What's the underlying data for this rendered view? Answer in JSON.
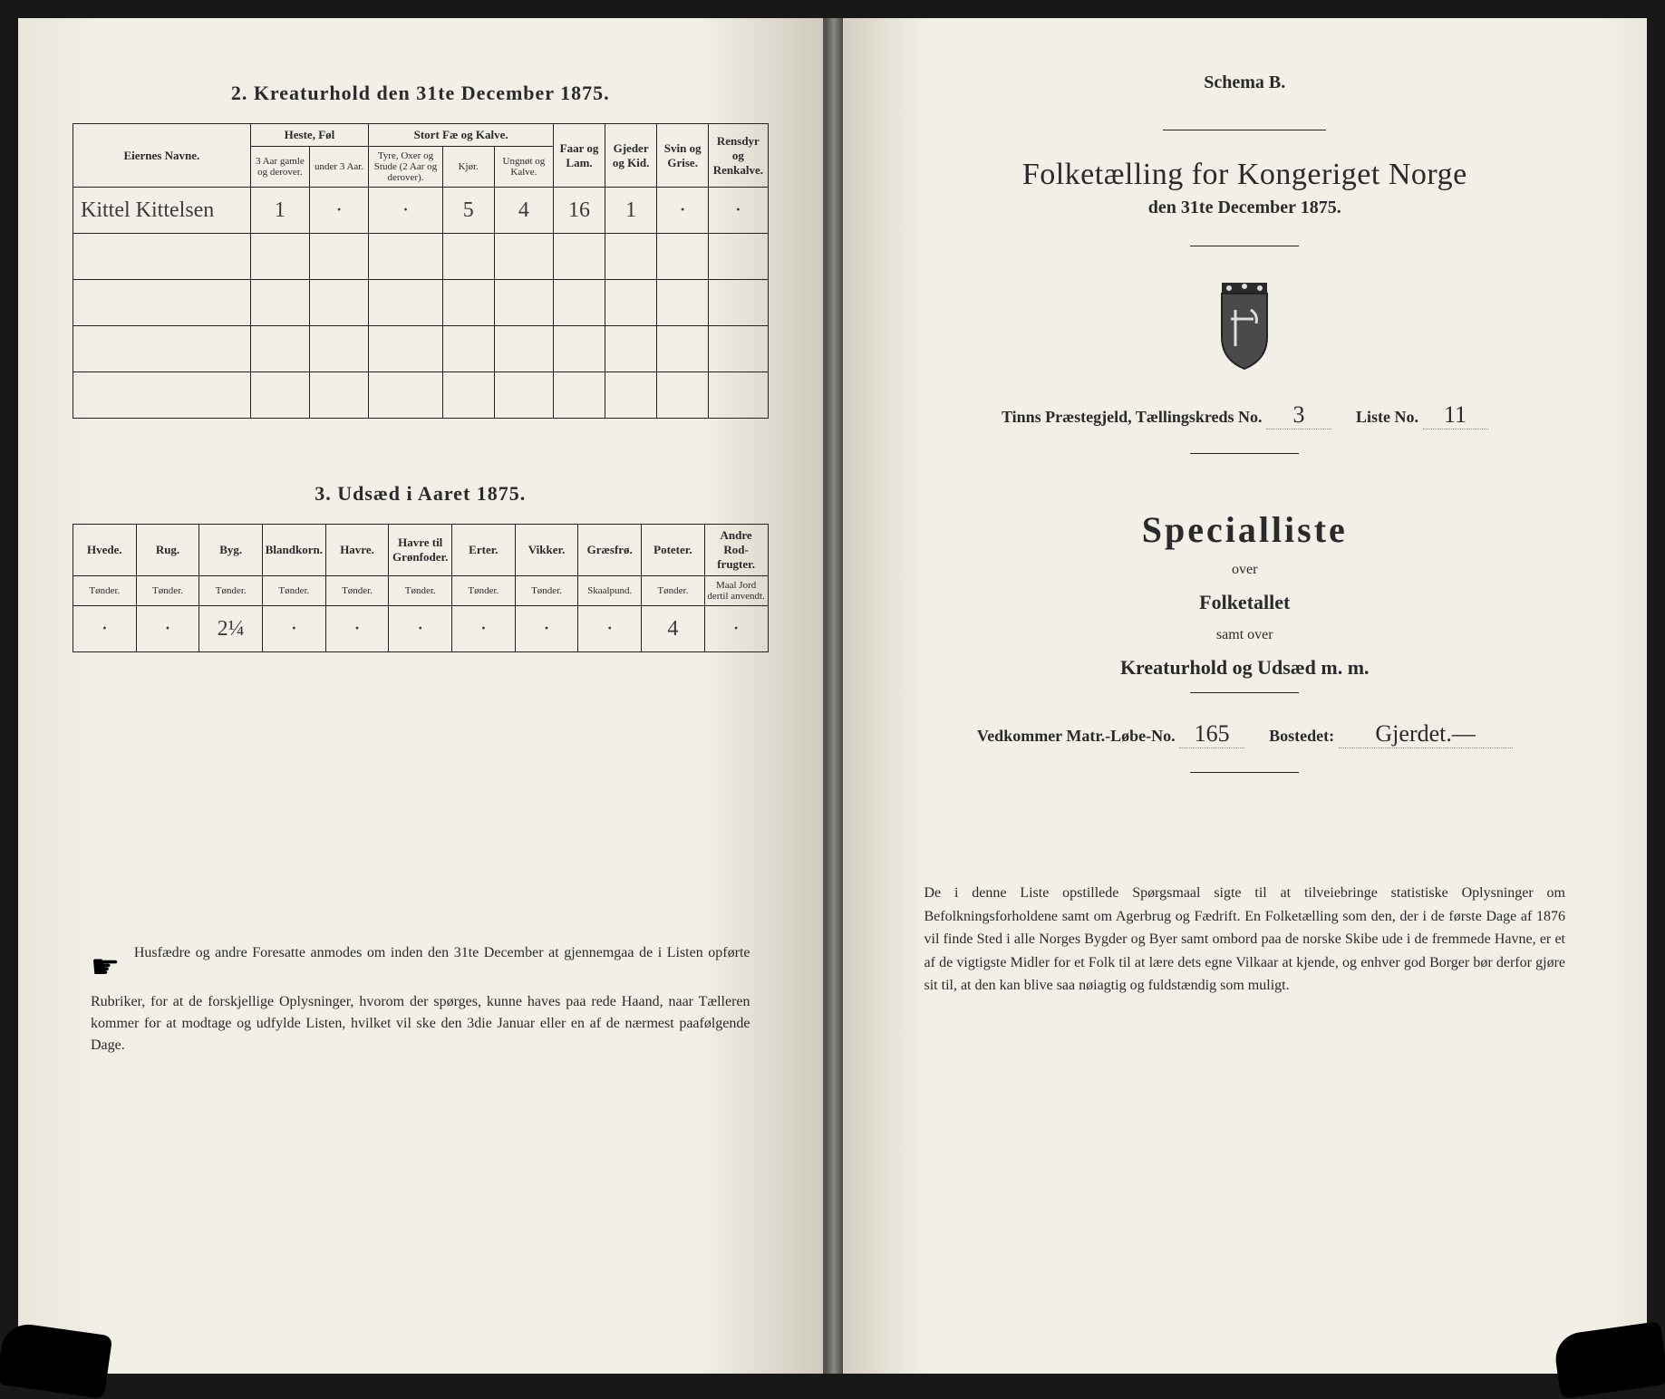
{
  "left": {
    "section2_title": "2.  Kreaturhold den 31te December 1875.",
    "t2": {
      "col_owner": "Eiernes Navne.",
      "grp_horses": "Heste, Føl",
      "grp_cattle": "Stort Fæ og Kalve.",
      "col_sheep": "Faar og Lam.",
      "col_goats": "Gjeder og Kid.",
      "col_pigs": "Svin og Grise.",
      "col_reindeer": "Rensdyr og Renkalve.",
      "sub_h1": "3 Aar gamle og derover.",
      "sub_h2": "under 3 Aar.",
      "sub_c1": "Tyre, Oxer og Stude (2 Aar og derover).",
      "sub_c2": "Kjør.",
      "sub_c3": "Ungnøt og Kalve.",
      "row1": {
        "owner": "Kittel Kittelsen",
        "h1": "1",
        "h2": "·",
        "c1": "·",
        "c2": "5",
        "c3": "4",
        "sheep": "16",
        "goats": "1",
        "pigs": "·",
        "reindeer": "·"
      }
    },
    "section3_title": "3.  Udsæd i Aaret 1875.",
    "t3": {
      "cols": [
        "Hvede.",
        "Rug.",
        "Byg.",
        "Blandkorn.",
        "Havre.",
        "Havre til Grønfoder.",
        "Erter.",
        "Vikker.",
        "Græsfrø.",
        "Poteter.",
        "Andre Rod-frugter."
      ],
      "units": [
        "Tønder.",
        "Tønder.",
        "Tønder.",
        "Tønder.",
        "Tønder.",
        "Tønder.",
        "Tønder.",
        "Tønder.",
        "Skaalpund.",
        "Tønder.",
        "Maal Jord dertil anvendt."
      ],
      "row": [
        "·",
        "·",
        "2¼",
        "·",
        "·",
        "·",
        "·",
        "·",
        "·",
        "4",
        "·"
      ]
    },
    "footnote": "Husfædre og andre Foresatte anmodes om inden den 31te December at gjennemgaa de i Listen opførte Rubriker, for at de forskjellige Oplysninger, hvorom der spørges, kunne haves paa rede Haand, naar Tælleren kommer for at modtage og udfylde Listen, hvilket vil ske den 3die Januar eller en af de nærmest paafølgende Dage."
  },
  "right": {
    "schema": "Schema B.",
    "main_title": "Folketælling for Kongeriget Norge",
    "sub_date": "den 31te December 1875.",
    "line1_a": "Tinns Præstegjeld, Tællingskreds No.",
    "line1_v1": "3",
    "line1_b": "Liste No.",
    "line1_v2": "11",
    "spec": "Specialliste",
    "over": "over",
    "folke": "Folketallet",
    "samt": "samt over",
    "kreat": "Kreaturhold og Udsæd m. m.",
    "line2_a": "Vedkommer Matr.-Løbe-No.",
    "line2_v1": "165",
    "line2_b": "Bostedet:",
    "line2_v2": "Gjerdet.—",
    "bottom": "De i denne Liste opstillede Spørgsmaal sigte til at tilveiebringe statistiske Oplysninger om Befolkningsforholdene samt om Agerbrug og Fædrift.  En Folketælling som den, der i de første Dage af 1876 vil finde Sted i alle Norges Bygder og Byer samt ombord paa de norske Skibe ude i de fremmede Havne, er et af de vigtigste Midler for et Folk til at lære dets egne Vilkaar at kjende, og enhver god Borger bør derfor gjøre sit til, at den kan blive saa nøiagtig og fuldstændig som muligt."
  },
  "colors": {
    "ink": "#222222",
    "paper": "#f1efe6",
    "hand": "#3a3a3a"
  }
}
